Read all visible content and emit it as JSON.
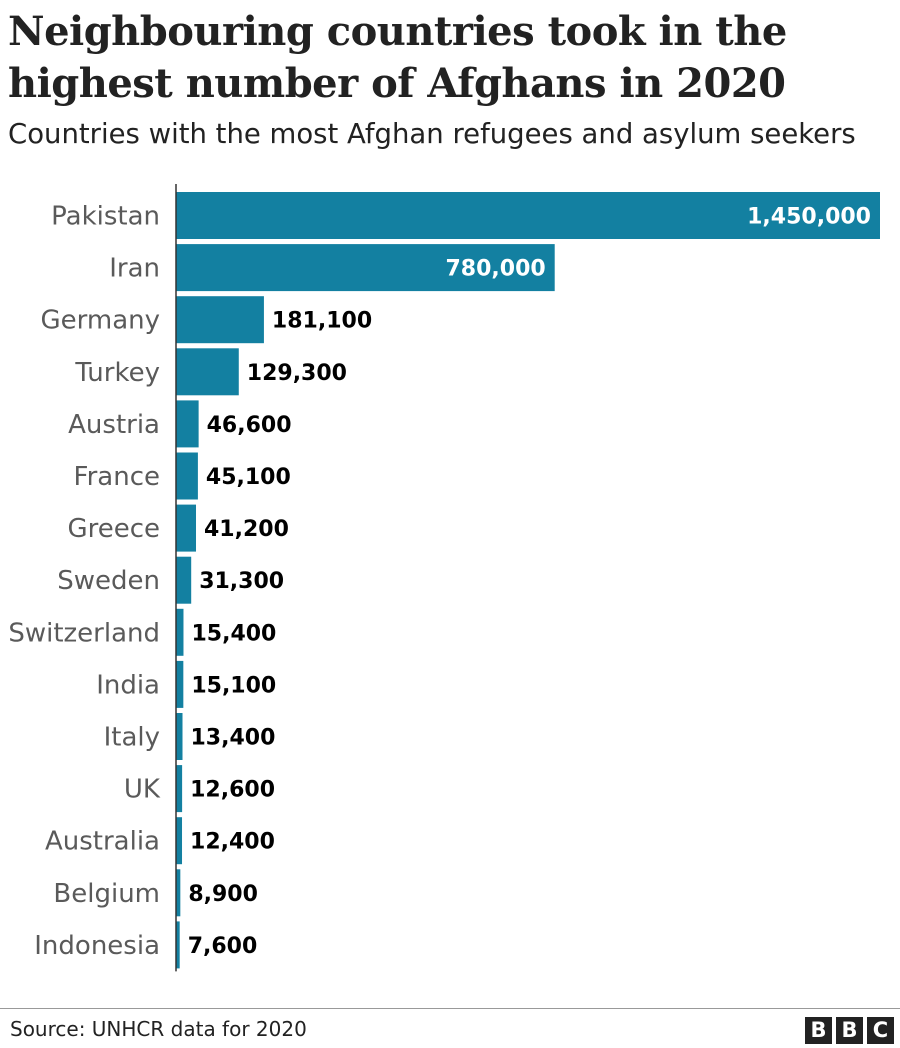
{
  "header": {
    "title": "Neighbouring countries took in the highest number of Afghans in 2020",
    "subtitle": "Countries with the most Afghan refugees and asylum seekers"
  },
  "chart_data": {
    "type": "bar",
    "orientation": "horizontal",
    "title": "Neighbouring countries took in the highest number of Afghans in 2020",
    "subtitle": "Countries with the most Afghan refugees and asylum seekers",
    "xlabel": "",
    "ylabel": "",
    "categories": [
      "Pakistan",
      "Iran",
      "Germany",
      "Turkey",
      "Austria",
      "France",
      "Greece",
      "Sweden",
      "Switzerland",
      "India",
      "Italy",
      "UK",
      "Australia",
      "Belgium",
      "Indonesia"
    ],
    "values": [
      1450000,
      780000,
      181100,
      129300,
      46600,
      45100,
      41200,
      31300,
      15400,
      15100,
      13400,
      12600,
      12400,
      8900,
      7600
    ],
    "value_labels": [
      "1,450,000",
      "780,000",
      "181,100",
      "129,300",
      "46,600",
      "45,100",
      "41,200",
      "31,300",
      "15,400",
      "15,100",
      "13,400",
      "12,600",
      "12,400",
      "8,900",
      "7,600"
    ],
    "xlim": [
      0,
      1450000
    ],
    "grid": false,
    "legend": "none",
    "bar_color": "#1380A1"
  },
  "footer": {
    "source": "Source: UNHCR data for 2020",
    "logo_letters": [
      "B",
      "B",
      "C"
    ]
  },
  "colors": {
    "bar": "#1380A1",
    "text": "#222222",
    "category_text": "#5a5a5a",
    "label_inside": "#ffffff",
    "label_outside": "#000000"
  }
}
